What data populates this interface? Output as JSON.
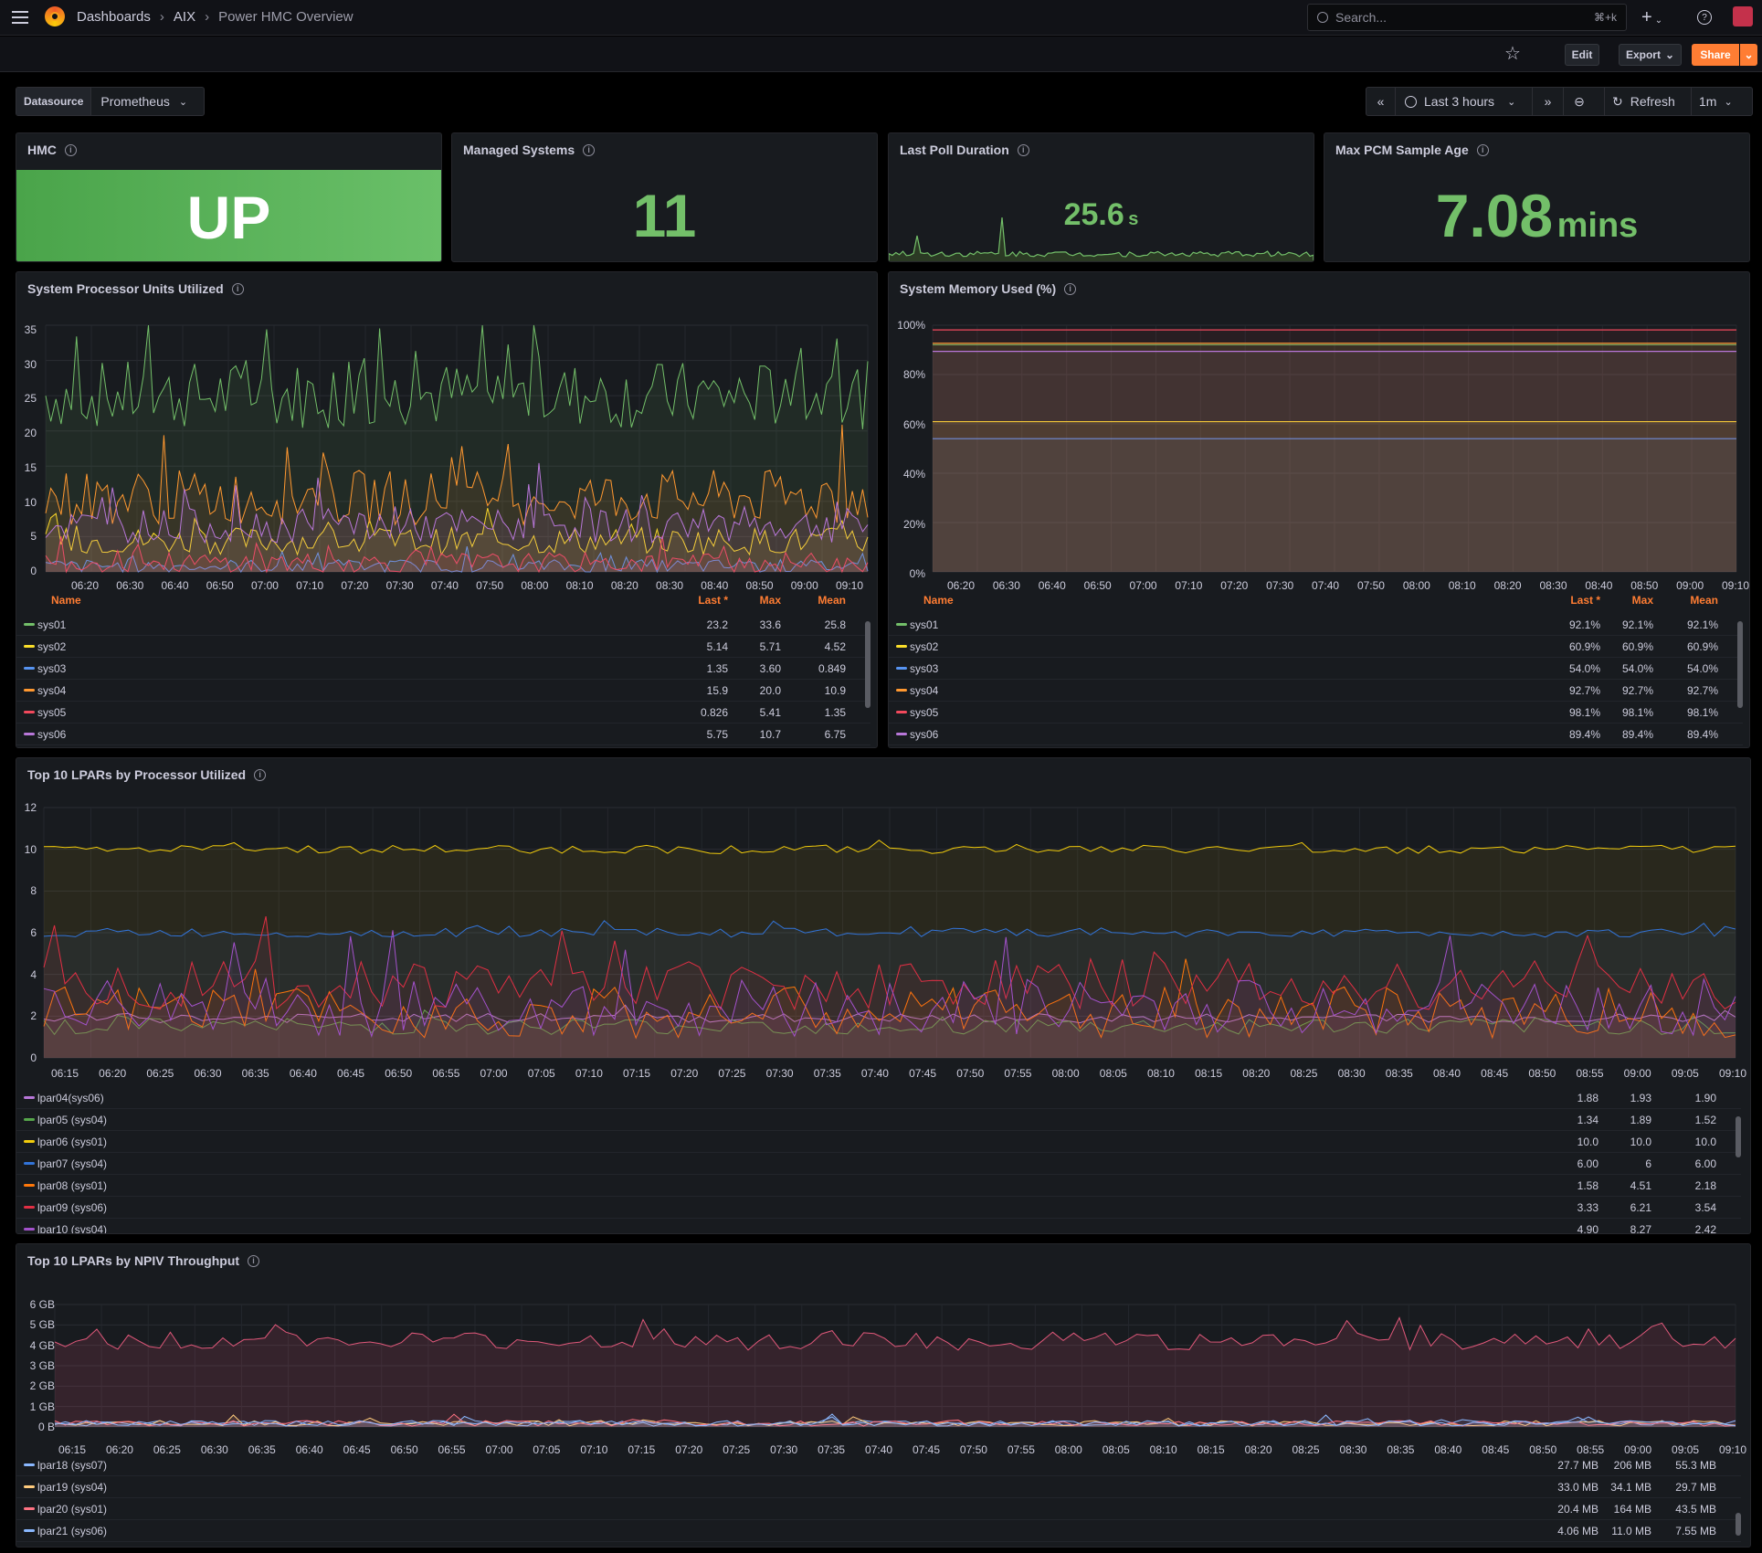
{
  "breadcrumb": {
    "home": "Dashboards",
    "folder": "AIX",
    "dashboard": "Power HMC Overview"
  },
  "search": {
    "placeholder": "Search...",
    "shortcut": "⌘+k"
  },
  "toolbar": {
    "edit": "Edit",
    "export": "Export",
    "share": "Share"
  },
  "variables": {
    "label": "Datasource",
    "value": "Prometheus"
  },
  "timepicker": {
    "range": "Last 3 hours",
    "refresh": "Refresh",
    "interval": "1m"
  },
  "colors": {
    "green": "#73bf69",
    "panel": "#181b1f",
    "accent": "#ff7d33",
    "stat_green": "#56a64b"
  },
  "panels": {
    "hmc": {
      "title": "HMC",
      "value": "UP"
    },
    "managed": {
      "title": "Managed Systems",
      "value": "11"
    },
    "poll": {
      "title": "Last Poll Duration",
      "value": "25.6",
      "unit": "s"
    },
    "pcm": {
      "title": "Max PCM Sample Age",
      "value": "7.08",
      "unit": "mins"
    },
    "cpu": {
      "title": "System Processor Units Utilized"
    },
    "mem": {
      "title": "System Memory Used (%)"
    },
    "lpar": {
      "title": "Top 10 LPARs by Processor Utilized"
    },
    "npiv": {
      "title": "Top 10 LPARs by NPIV Throughput"
    }
  },
  "legend_headers": {
    "name": "Name",
    "last": "Last *",
    "max": "Max",
    "mean": "Mean"
  },
  "cpu_ticks_y": [
    "35",
    "30",
    "25",
    "20",
    "15",
    "10",
    "5",
    "0"
  ],
  "mem_ticks_y": [
    "100%",
    "80%",
    "60%",
    "40%",
    "20%",
    "0%"
  ],
  "sys_ticks_x": [
    "06:20",
    "06:30",
    "06:40",
    "06:50",
    "07:00",
    "07:10",
    "07:20",
    "07:30",
    "07:40",
    "07:50",
    "08:00",
    "08:10",
    "08:20",
    "08:30",
    "08:40",
    "08:50",
    "09:00",
    "09:10"
  ],
  "lpar_ticks_y": [
    "12",
    "10",
    "8",
    "6",
    "4",
    "2",
    "0"
  ],
  "npiv_ticks_y": [
    "6 GB",
    "5 GB",
    "4 GB",
    "3 GB",
    "2 GB",
    "1 GB",
    "0 B"
  ],
  "wide_ticks_x": [
    "06:15",
    "06:20",
    "06:25",
    "06:30",
    "06:35",
    "06:40",
    "06:45",
    "06:50",
    "06:55",
    "07:00",
    "07:05",
    "07:10",
    "07:15",
    "07:20",
    "07:25",
    "07:30",
    "07:35",
    "07:40",
    "07:45",
    "07:50",
    "07:55",
    "08:00",
    "08:05",
    "08:10",
    "08:15",
    "08:20",
    "08:25",
    "08:30",
    "08:35",
    "08:40",
    "08:45",
    "08:50",
    "08:55",
    "09:00",
    "09:05",
    "09:10"
  ],
  "cpu_legend": [
    {
      "name": "sys01",
      "last": "23.2",
      "max": "33.6",
      "mean": "25.8",
      "color": "#73bf69"
    },
    {
      "name": "sys02",
      "last": "5.14",
      "max": "5.71",
      "mean": "4.52",
      "color": "#fade2a"
    },
    {
      "name": "sys03",
      "last": "1.35",
      "max": "3.60",
      "mean": "0.849",
      "color": "#5794f2"
    },
    {
      "name": "sys04",
      "last": "15.9",
      "max": "20.0",
      "mean": "10.9",
      "color": "#ff9830"
    },
    {
      "name": "sys05",
      "last": "0.826",
      "max": "5.41",
      "mean": "1.35",
      "color": "#f2495c"
    },
    {
      "name": "sys06",
      "last": "5.75",
      "max": "10.7",
      "mean": "6.75",
      "color": "#b877d9"
    }
  ],
  "mem_legend": [
    {
      "name": "sys01",
      "last": "92.1%",
      "max": "92.1%",
      "mean": "92.1%",
      "color": "#73bf69"
    },
    {
      "name": "sys02",
      "last": "60.9%",
      "max": "60.9%",
      "mean": "60.9%",
      "color": "#fade2a"
    },
    {
      "name": "sys03",
      "last": "54.0%",
      "max": "54.0%",
      "mean": "54.0%",
      "color": "#5794f2"
    },
    {
      "name": "sys04",
      "last": "92.7%",
      "max": "92.7%",
      "mean": "92.7%",
      "color": "#ff9830"
    },
    {
      "name": "sys05",
      "last": "98.1%",
      "max": "98.1%",
      "mean": "98.1%",
      "color": "#f2495c"
    },
    {
      "name": "sys06",
      "last": "89.4%",
      "max": "89.4%",
      "mean": "89.4%",
      "color": "#b877d9"
    }
  ],
  "lpar_legend": [
    {
      "name": "lpar04(sys06)",
      "last": "1.88",
      "max": "1.93",
      "mean": "1.90",
      "color": "#b877d9"
    },
    {
      "name": "lpar05 (sys04)",
      "last": "1.34",
      "max": "1.89",
      "mean": "1.52",
      "color": "#56a64b"
    },
    {
      "name": "lpar06 (sys01)",
      "last": "10.0",
      "max": "10.0",
      "mean": "10.0",
      "color": "#f2cc0c"
    },
    {
      "name": "lpar07 (sys04)",
      "last": "6.00",
      "max": "6",
      "mean": "6.00",
      "color": "#3274d9"
    },
    {
      "name": "lpar08 (sys01)",
      "last": "1.58",
      "max": "4.51",
      "mean": "2.18",
      "color": "#ff780a"
    },
    {
      "name": "lpar09 (sys06)",
      "last": "3.33",
      "max": "6.21",
      "mean": "3.54",
      "color": "#e02f44"
    },
    {
      "name": "lpar10 (sys04)",
      "last": "4.90",
      "max": "8.27",
      "mean": "2.42",
      "color": "#a352cc"
    }
  ],
  "npiv_legend": [
    {
      "name": "lpar18 (sys07)",
      "last": "27.7 MB",
      "max": "206 MB",
      "mean": "55.3 MB",
      "color": "#8ab8ff"
    },
    {
      "name": "lpar19 (sys04)",
      "last": "33.0 MB",
      "max": "34.1 MB",
      "mean": "29.7 MB",
      "color": "#ffcb7d"
    },
    {
      "name": "lpar20 (sys01)",
      "last": "20.4 MB",
      "max": "164 MB",
      "mean": "43.5 MB",
      "color": "#ff7383"
    },
    {
      "name": "lpar21 (sys06)",
      "last": "4.06 MB",
      "max": "11.0 MB",
      "mean": "7.55 MB",
      "color": "#8ab8ff"
    }
  ]
}
